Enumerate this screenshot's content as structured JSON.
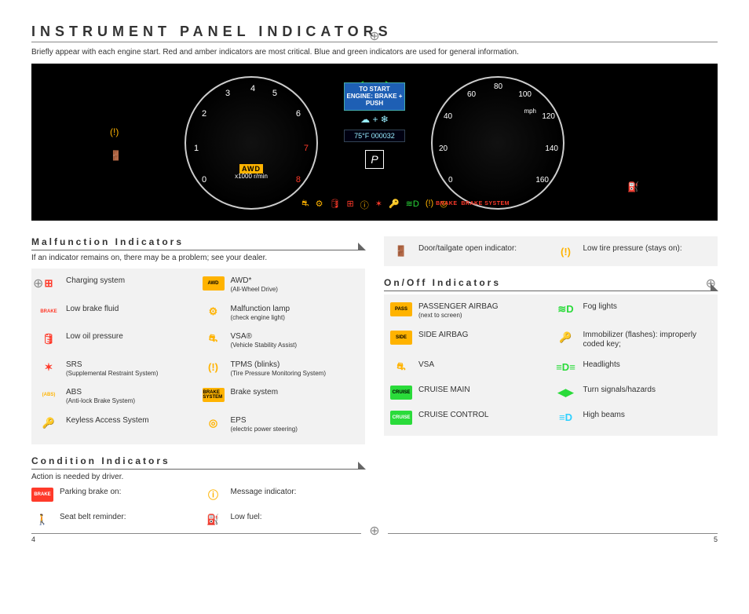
{
  "page": {
    "title": "INSTRUMENT PANEL INDICATORS",
    "intro": "Briefly appear with each engine start. Red and amber indicators are most critical. Blue and green indicators are used for general information.",
    "left_page_num": "4",
    "right_page_num": "5"
  },
  "dashboard": {
    "start_label": "TO START ENGINE: BRAKE + PUSH",
    "odo": "75°F 000032",
    "gear": "P",
    "tach_unit": "x1000 r/min",
    "speed_unit": "mph",
    "tach_ticks": [
      "0",
      "1",
      "2",
      "3",
      "4",
      "5",
      "6",
      "7",
      "8"
    ],
    "speed_ticks": [
      "0",
      "20",
      "40",
      "60",
      "80",
      "100",
      "120",
      "140",
      "160"
    ],
    "awd_badge": "AWD",
    "brake_badge_1": "BRAKE",
    "brake_badge_2": "BRAKE SYSTEM",
    "colors": {
      "bg": "#000000",
      "amber": "#ffb300",
      "red": "#ff3a2a",
      "green": "#1fc41f",
      "cyan": "#2ed0ff",
      "white": "#ffffff",
      "blue": "#1e5fb4"
    }
  },
  "sections": {
    "malfunction": {
      "title": "Malfunction Indicators",
      "sub": "If an indicator remains on, there may be a problem; see your dealer.",
      "items_left": [
        {
          "label": "Charging system",
          "icon": "battery",
          "color": "#ff3a2a"
        },
        {
          "label": "Low brake fluid",
          "icon": "brake-text",
          "color": "#ff3a2a"
        },
        {
          "label": "Low oil pressure",
          "icon": "oil",
          "color": "#ff3a2a"
        },
        {
          "label": "SRS",
          "sublabel": "(Supplemental Restraint System)",
          "icon": "srs",
          "color": "#ff3a2a"
        },
        {
          "label": "ABS",
          "sublabel": "(Anti-lock Brake System)",
          "icon": "abs",
          "color": "#ffb300"
        },
        {
          "label": "Keyless Access System",
          "icon": "key",
          "color": "#ffb300"
        }
      ],
      "items_right": [
        {
          "label": "AWD*",
          "sublabel": "(All-Wheel Drive)",
          "icon": "awd",
          "color": "#ffb300",
          "bg": "#ffb300",
          "fg": "#000000"
        },
        {
          "label": "Malfunction lamp",
          "sublabel": "(check engine light)",
          "icon": "engine",
          "color": "#ffb300"
        },
        {
          "label": "VSA®",
          "sublabel": "(Vehicle Stability Assist)",
          "icon": "vsa",
          "color": "#ffb300"
        },
        {
          "label": "TPMS (blinks)",
          "sublabel": "(Tire Pressure Monitoring System)",
          "icon": "tpms",
          "color": "#ffb300"
        },
        {
          "label": "Brake system",
          "icon": "brake-sys",
          "color": "#ffb300",
          "bg": "#ffb300",
          "fg": "#000000"
        },
        {
          "label": "EPS",
          "sublabel": "(electric power steering)",
          "icon": "eps",
          "color": "#ffb300"
        }
      ]
    },
    "condition": {
      "title": "Condition Indicators",
      "sub": "Action is needed by driver.",
      "items_left": [
        {
          "label": "Parking brake on:",
          "icon": "brake-text",
          "color": "#ff3a2a",
          "bg": "#ff3a2a",
          "fg": "#ffffff"
        },
        {
          "label": "Seat belt reminder:",
          "icon": "seatbelt",
          "color": "#ff3a2a"
        }
      ],
      "items_right": [
        {
          "label": "Message indicator:",
          "icon": "info",
          "color": "#ffb300"
        },
        {
          "label": "Low fuel:",
          "icon": "fuel",
          "color": "#ffb300"
        }
      ]
    },
    "right_top": {
      "items_left": [
        {
          "label": "Door/tailgate open indicator:",
          "icon": "door",
          "color": "#ff3a2a"
        }
      ],
      "items_right": [
        {
          "label": "Low tire pressure (stays on):",
          "icon": "tpms",
          "color": "#ffb300"
        }
      ]
    },
    "onoff": {
      "title": "On/Off Indicators",
      "items_left": [
        {
          "label": "PASSENGER AIRBAG",
          "sublabel": "(next to screen)",
          "icon": "pass-airbag",
          "color": "#ffb300",
          "bg": "#ffb300",
          "fg": "#000000"
        },
        {
          "label": "SIDE AIRBAG",
          "icon": "side-airbag",
          "color": "#ffb300",
          "bg": "#ffb300",
          "fg": "#000000"
        },
        {
          "label": "VSA",
          "icon": "vsa-off",
          "color": "#ffb300"
        },
        {
          "label": "CRUISE MAIN",
          "icon": "cruise-main",
          "color": "#2adb3a",
          "bg": "#2adb3a",
          "fg": "#000"
        },
        {
          "label": "CRUISE CONTROL",
          "icon": "cruise-ctrl",
          "color": "#2adb3a",
          "bg": "#2adb3a",
          "fg": "#fff"
        }
      ],
      "items_right": [
        {
          "label": "Fog lights",
          "icon": "fog",
          "color": "#2adb3a"
        },
        {
          "label": "Immobilizer (flashes): improperly coded key;",
          "icon": "immobilizer",
          "color": "#2adb3a"
        },
        {
          "label": "Headlights",
          "icon": "headlights",
          "color": "#2adb3a"
        },
        {
          "label": "Turn signals/hazards",
          "icon": "turn-signals",
          "color": "#2adb3a"
        },
        {
          "label": "High beams",
          "icon": "high-beam",
          "color": "#2ed0ff"
        }
      ]
    }
  },
  "icon_glyphs": {
    "battery": "⊞",
    "brake-text": "BRAKE",
    "oil": "🛢",
    "srs": "✶",
    "abs": "(ABS)",
    "key": "🔑",
    "awd": "AWD",
    "engine": "⚙",
    "vsa": "⛐",
    "tpms": "(!)",
    "brake-sys": "BRAKE SYSTEM",
    "eps": "◎",
    "seatbelt": "🚶",
    "info": "ⓘ",
    "fuel": "⛽",
    "door": "🚪",
    "pass-airbag": "PASS",
    "side-airbag": "SIDE",
    "vsa-off": "⛐",
    "cruise-main": "CRUISE",
    "cruise-ctrl": "CRUISE",
    "fog": "≋D",
    "immobilizer": "🔑",
    "headlights": "≡D≡",
    "turn-signals": "◀▶",
    "high-beam": "≡D"
  }
}
